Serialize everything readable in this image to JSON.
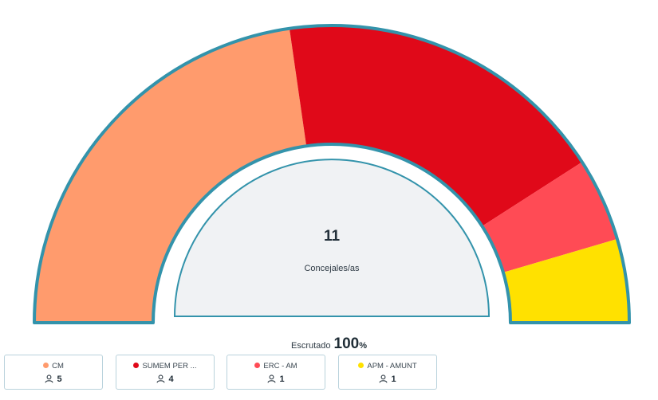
{
  "chart_data": {
    "type": "parliament-semicircle",
    "total_seats": 11,
    "center_value": "11",
    "center_label": "Concejales/as",
    "series": [
      {
        "name": "CM",
        "seats": 5,
        "color": "#ff9b6d"
      },
      {
        "name": "SUMEM PER ...",
        "seats": 4,
        "color": "#e00919"
      },
      {
        "name": "ERC - AM",
        "seats": 1,
        "color": "#ff4b55"
      },
      {
        "name": "APM - AMUNT",
        "seats": 1,
        "color": "#ffe100"
      }
    ]
  },
  "scrutiny": {
    "label": "Escrutado",
    "value": "100",
    "unit": "%"
  },
  "icons": {
    "seat": "user-icon"
  },
  "colors": {
    "outline": "#3393ab",
    "inner_fill": "#f0f2f4",
    "card_border": "#b9d2dc"
  }
}
